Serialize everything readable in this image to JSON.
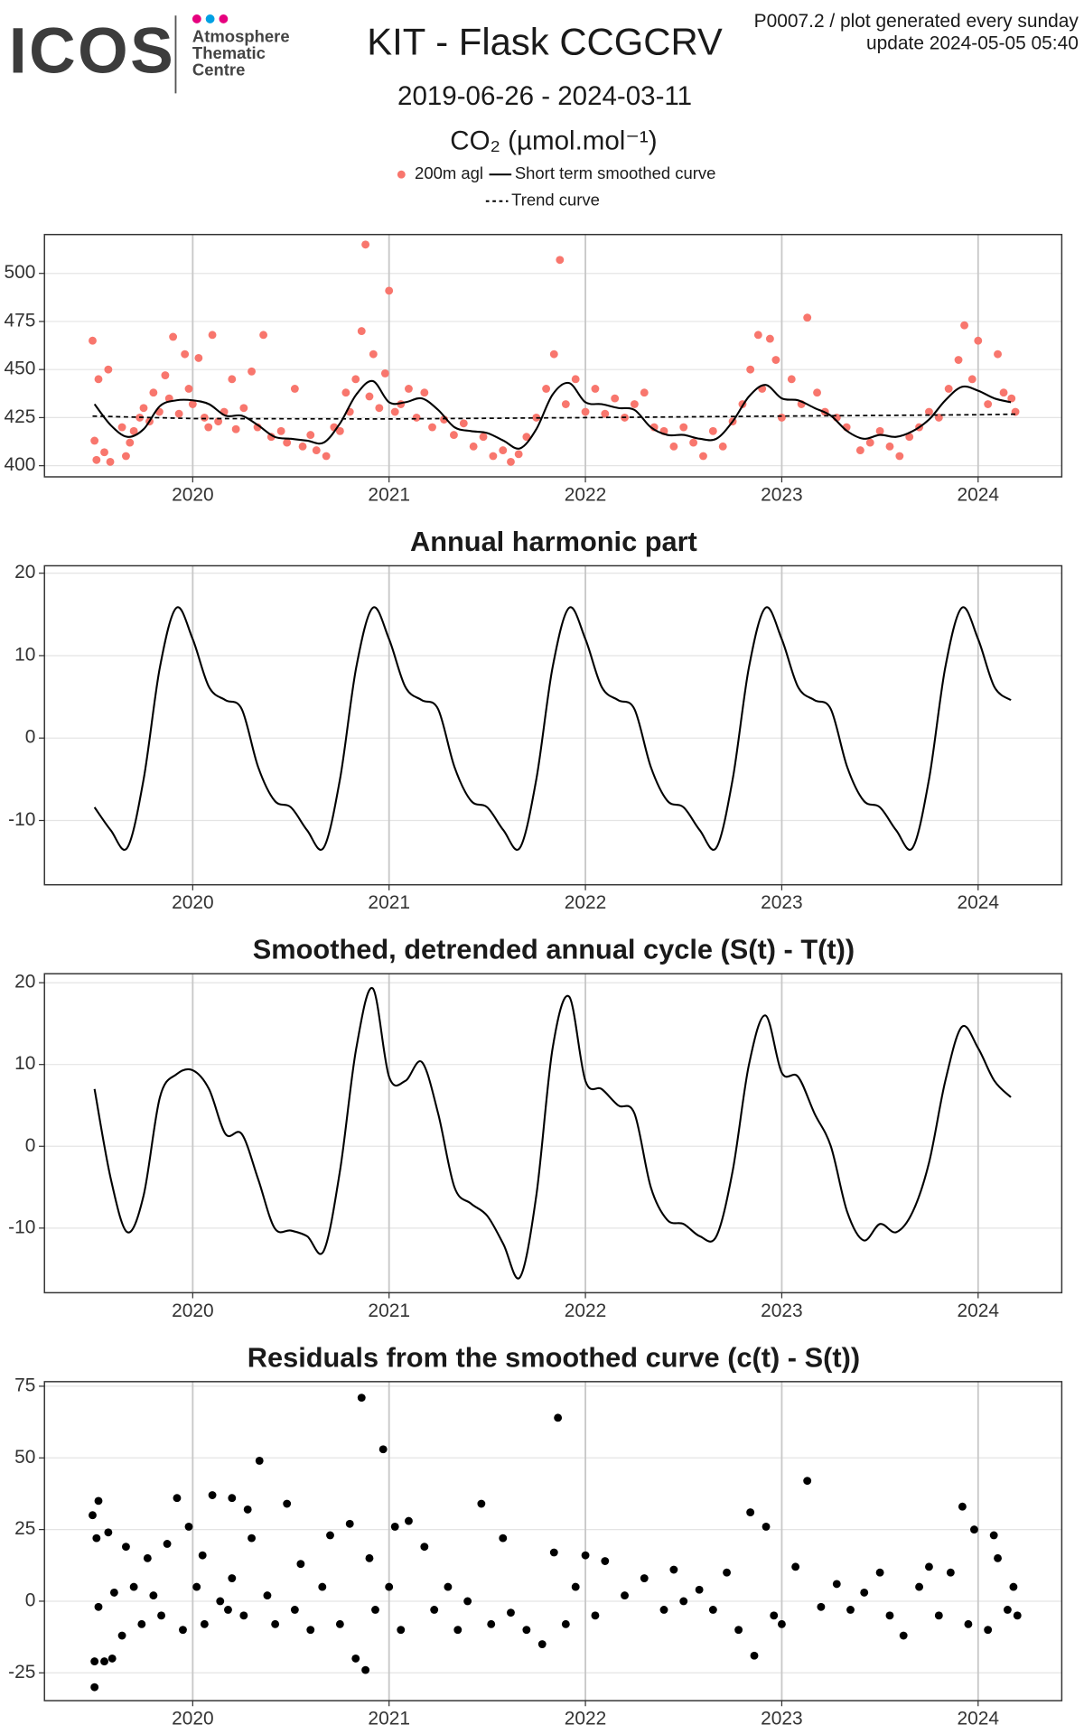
{
  "header": {
    "logo": "ICOS",
    "logo_lines": [
      "Atmosphere",
      "Thematic",
      "Centre"
    ],
    "title": "KIT - Flask CCGCRV",
    "subtitle": "2019-06-26 - 2024-03-11",
    "ylabel": "CO₂ (µmol.mol⁻¹)",
    "note": [
      "P0007.2 / plot generated every sunday",
      "update  2024-05-05 05:40"
    ]
  },
  "chart_data": [
    {
      "type": "scatter",
      "legend": "top",
      "grid": true,
      "xlim": [
        2019.245,
        2024.426
      ],
      "xticks": [
        2020,
        2021,
        2022,
        2023,
        2024
      ],
      "ylim": [
        394.2,
        520.2
      ],
      "yticks": [
        400,
        425,
        450,
        475,
        500
      ],
      "series": [
        {
          "name": "200m agl",
          "color": "#F8766D",
          "style": "points",
          "x": [
            2019.49,
            2019.5,
            2019.51,
            2019.52,
            2019.55,
            2019.57,
            2019.58,
            2019.64,
            2019.66,
            2019.68,
            2019.7,
            2019.73,
            2019.75,
            2019.78,
            2019.8,
            2019.83,
            2019.86,
            2019.88,
            2019.9,
            2019.93,
            2019.96,
            2019.98,
            2020.0,
            2020.03,
            2020.06,
            2020.08,
            2020.1,
            2020.13,
            2020.16,
            2020.2,
            2020.22,
            2020.26,
            2020.3,
            2020.33,
            2020.36,
            2020.4,
            2020.45,
            2020.48,
            2020.52,
            2020.56,
            2020.6,
            2020.63,
            2020.68,
            2020.72,
            2020.75,
            2020.78,
            2020.8,
            2020.83,
            2020.86,
            2020.88,
            2020.9,
            2020.92,
            2020.95,
            2020.98,
            2021.0,
            2021.03,
            2021.06,
            2021.1,
            2021.14,
            2021.18,
            2021.22,
            2021.28,
            2021.33,
            2021.38,
            2021.43,
            2021.48,
            2021.53,
            2021.58,
            2021.62,
            2021.66,
            2021.7,
            2021.75,
            2021.8,
            2021.84,
            2021.87,
            2021.9,
            2021.95,
            2022.0,
            2022.05,
            2022.1,
            2022.15,
            2022.2,
            2022.25,
            2022.3,
            2022.35,
            2022.4,
            2022.45,
            2022.5,
            2022.55,
            2022.6,
            2022.65,
            2022.7,
            2022.75,
            2022.8,
            2022.84,
            2022.88,
            2022.9,
            2022.94,
            2022.97,
            2023.0,
            2023.05,
            2023.1,
            2023.13,
            2023.18,
            2023.22,
            2023.28,
            2023.33,
            2023.4,
            2023.45,
            2023.5,
            2023.55,
            2023.6,
            2023.65,
            2023.7,
            2023.75,
            2023.8,
            2023.85,
            2023.9,
            2023.93,
            2023.97,
            2024.0,
            2024.05,
            2024.1,
            2024.13,
            2024.17,
            2024.19
          ],
          "values": [
            465,
            413,
            403,
            445,
            407,
            450,
            402,
            420,
            405,
            412,
            418,
            425,
            430,
            423,
            438,
            428,
            447,
            435,
            467,
            427,
            458,
            440,
            432,
            456,
            425,
            420,
            468,
            423,
            428,
            445,
            419,
            430,
            449,
            420,
            468,
            415,
            418,
            412,
            440,
            410,
            416,
            408,
            405,
            420,
            418,
            438,
            428,
            445,
            470,
            515,
            436,
            458,
            430,
            448,
            491,
            428,
            432,
            440,
            425,
            438,
            420,
            424,
            416,
            422,
            410,
            415,
            405,
            408,
            402,
            406,
            415,
            425,
            440,
            458,
            507,
            432,
            445,
            428,
            440,
            427,
            435,
            425,
            432,
            438,
            420,
            418,
            410,
            420,
            412,
            405,
            418,
            410,
            423,
            432,
            450,
            468,
            440,
            466,
            455,
            425,
            445,
            432,
            477,
            438,
            428,
            425,
            420,
            408,
            412,
            418,
            410,
            405,
            415,
            420,
            428,
            425,
            440,
            455,
            473,
            445,
            465,
            432,
            458,
            438,
            435,
            428
          ]
        },
        {
          "name": "Short term smoothed curve",
          "color": "#000000",
          "style": "line",
          "x": [
            2019.5,
            2019.583,
            2019.667,
            2019.75,
            2019.833,
            2019.917,
            2020.0,
            2020.083,
            2020.167,
            2020.25,
            2020.333,
            2020.417,
            2020.5,
            2020.583,
            2020.667,
            2020.75,
            2020.833,
            2020.917,
            2021.0,
            2021.083,
            2021.167,
            2021.25,
            2021.333,
            2021.417,
            2021.5,
            2021.583,
            2021.667,
            2021.75,
            2021.833,
            2021.917,
            2022.0,
            2022.083,
            2022.167,
            2022.25,
            2022.333,
            2022.417,
            2022.5,
            2022.583,
            2022.667,
            2022.75,
            2022.833,
            2022.917,
            2023.0,
            2023.083,
            2023.167,
            2023.25,
            2023.333,
            2023.417,
            2023.5,
            2023.583,
            2023.667,
            2023.75,
            2023.833,
            2023.917,
            2024.0,
            2024.083,
            2024.167
          ],
          "values": [
            432,
            421,
            415,
            419,
            431,
            434,
            434,
            432,
            426,
            426,
            421,
            415,
            414,
            413,
            412,
            422,
            437,
            444,
            433,
            433,
            435,
            429,
            420,
            418,
            417,
            413,
            409,
            419,
            437,
            443,
            433,
            432,
            430,
            429,
            420,
            416,
            416,
            414,
            414,
            423,
            436,
            442,
            435,
            434,
            430,
            426,
            418,
            414,
            416,
            415,
            418,
            424,
            434,
            441,
            439,
            435,
            433
          ]
        },
        {
          "name": "Trend curve",
          "color": "#000000",
          "style": "dashed",
          "x": [
            2019.49,
            2020.0,
            2021.0,
            2022.0,
            2023.0,
            2024.0,
            2024.19
          ],
          "values": [
            425.8,
            424.5,
            424.3,
            425,
            425.8,
            426.5,
            426.8
          ]
        }
      ]
    },
    {
      "type": "line",
      "title": "Annual harmonic part",
      "grid": true,
      "xlim": [
        2019.245,
        2024.426
      ],
      "xticks": [
        2020,
        2021,
        2022,
        2023,
        2024
      ],
      "ylim": [
        -17.8,
        20.9
      ],
      "yticks": [
        -10,
        0,
        10,
        20
      ],
      "series": [
        {
          "color": "#000000",
          "style": "line",
          "x": [
            2019.5,
            2019.583,
            2019.667,
            2019.75,
            2019.833,
            2019.917,
            2020.0,
            2020.083,
            2020.167,
            2020.25,
            2020.333,
            2020.417,
            2020.5,
            2020.583,
            2020.667,
            2020.75,
            2020.833,
            2020.917,
            2021.0,
            2021.083,
            2021.167,
            2021.25,
            2021.333,
            2021.417,
            2021.5,
            2021.583,
            2021.667,
            2021.75,
            2021.833,
            2021.917,
            2022.0,
            2022.083,
            2022.167,
            2022.25,
            2022.333,
            2022.417,
            2022.5,
            2022.583,
            2022.667,
            2022.75,
            2022.833,
            2022.917,
            2023.0,
            2023.083,
            2023.167,
            2023.25,
            2023.333,
            2023.417,
            2023.5,
            2023.583,
            2023.667,
            2023.75,
            2023.833,
            2023.917,
            2024.0,
            2024.083,
            2024.167
          ],
          "values": [
            -8.4,
            -11.2,
            -13.3,
            -5,
            8.6,
            15.8,
            12,
            6.2,
            4.6,
            3.5,
            -3.5,
            -7.6,
            -8.4,
            -11.2,
            -13.3,
            -5,
            8.6,
            15.8,
            12,
            6.2,
            4.6,
            3.5,
            -3.5,
            -7.6,
            -8.4,
            -11.2,
            -13.3,
            -5,
            8.6,
            15.8,
            12,
            6.2,
            4.6,
            3.5,
            -3.5,
            -7.6,
            -8.4,
            -11.2,
            -13.3,
            -5,
            8.6,
            15.8,
            12,
            6.2,
            4.6,
            3.5,
            -3.5,
            -7.6,
            -8.4,
            -11.2,
            -13.3,
            -5,
            8.6,
            15.8,
            12,
            6.2,
            4.6
          ]
        }
      ]
    },
    {
      "type": "line",
      "title": "Smoothed, detrended annual cycle (S(t) - T(t))",
      "grid": true,
      "xlim": [
        2019.245,
        2024.426
      ],
      "xticks": [
        2020,
        2021,
        2022,
        2023,
        2024
      ],
      "ylim": [
        -17.9,
        21.1
      ],
      "yticks": [
        -10,
        0,
        10,
        20
      ],
      "series": [
        {
          "color": "#000000",
          "style": "line",
          "x": [
            2019.5,
            2019.583,
            2019.667,
            2019.75,
            2019.833,
            2019.917,
            2020.0,
            2020.083,
            2020.167,
            2020.25,
            2020.333,
            2020.417,
            2020.5,
            2020.583,
            2020.667,
            2020.75,
            2020.833,
            2020.917,
            2021.0,
            2021.083,
            2021.167,
            2021.25,
            2021.333,
            2021.417,
            2021.5,
            2021.583,
            2021.667,
            2021.75,
            2021.833,
            2021.917,
            2022.0,
            2022.083,
            2022.167,
            2022.25,
            2022.333,
            2022.417,
            2022.5,
            2022.583,
            2022.667,
            2022.75,
            2022.833,
            2022.917,
            2023.0,
            2023.083,
            2023.167,
            2023.25,
            2023.333,
            2023.417,
            2023.5,
            2023.583,
            2023.667,
            2023.75,
            2023.833,
            2023.917,
            2024.0,
            2024.083,
            2024.167
          ],
          "values": [
            7,
            -4,
            -10.5,
            -6,
            6,
            8.8,
            9.3,
            7,
            1.5,
            1.5,
            -4,
            -10,
            -10.3,
            -11,
            -12.8,
            -3,
            12,
            19.3,
            8.5,
            8,
            10.3,
            4,
            -5,
            -7,
            -8.5,
            -12,
            -16,
            -6,
            12,
            18.3,
            8,
            7,
            5,
            4,
            -5,
            -9,
            -9.5,
            -11,
            -11,
            -3,
            10,
            16,
            9,
            8.5,
            4,
            0,
            -8,
            -11.5,
            -9.5,
            -10.5,
            -8,
            -2,
            8,
            14.6,
            12,
            8,
            6
          ]
        }
      ]
    },
    {
      "type": "scatter",
      "title": "Residuals from the smoothed curve (c(t) - S(t))",
      "grid": true,
      "xlim": [
        2019.245,
        2024.426
      ],
      "xticks": [
        2020,
        2021,
        2022,
        2023,
        2024
      ],
      "ylim": [
        -34.7,
        76.6
      ],
      "yticks": [
        -25,
        0,
        25,
        50,
        75
      ],
      "series": [
        {
          "color": "#000000",
          "style": "points",
          "x": [
            2019.49,
            2019.5,
            2019.5,
            2019.51,
            2019.52,
            2019.52,
            2019.55,
            2019.57,
            2019.59,
            2019.6,
            2019.64,
            2019.66,
            2019.7,
            2019.74,
            2019.77,
            2019.8,
            2019.84,
            2019.87,
            2019.92,
            2019.95,
            2019.98,
            2020.02,
            2020.05,
            2020.06,
            2020.1,
            2020.14,
            2020.18,
            2020.2,
            2020.2,
            2020.26,
            2020.28,
            2020.3,
            2020.34,
            2020.38,
            2020.42,
            2020.48,
            2020.52,
            2020.55,
            2020.6,
            2020.66,
            2020.7,
            2020.75,
            2020.8,
            2020.83,
            2020.86,
            2020.88,
            2020.9,
            2020.93,
            2020.97,
            2021.0,
            2021.03,
            2021.06,
            2021.1,
            2021.18,
            2021.23,
            2021.3,
            2021.35,
            2021.4,
            2021.47,
            2021.52,
            2021.58,
            2021.62,
            2021.7,
            2021.78,
            2021.84,
            2021.86,
            2021.9,
            2021.95,
            2022.0,
            2022.05,
            2022.1,
            2022.2,
            2022.3,
            2022.4,
            2022.45,
            2022.5,
            2022.58,
            2022.65,
            2022.72,
            2022.78,
            2022.84,
            2022.86,
            2022.92,
            2022.96,
            2023.0,
            2023.07,
            2023.13,
            2023.2,
            2023.28,
            2023.35,
            2023.42,
            2023.5,
            2023.55,
            2023.62,
            2023.7,
            2023.75,
            2023.8,
            2023.86,
            2023.92,
            2023.95,
            2023.98,
            2024.05,
            2024.08,
            2024.1,
            2024.15,
            2024.18,
            2024.2
          ],
          "values": [
            30,
            -30,
            -21,
            22,
            35,
            -2,
            -21,
            24,
            -20,
            3,
            -12,
            19,
            5,
            -8,
            15,
            2,
            -5,
            20,
            36,
            -10,
            26,
            5,
            16,
            -8,
            37,
            0,
            -3,
            8,
            36,
            -5,
            32,
            22,
            49,
            2,
            -8,
            34,
            -3,
            13,
            -10,
            5,
            23,
            -8,
            27,
            -20,
            71,
            -24,
            15,
            -3,
            53,
            5,
            26,
            -10,
            28,
            19,
            -3,
            5,
            -10,
            0,
            34,
            -8,
            22,
            -4,
            -10,
            -15,
            17,
            64,
            -8,
            5,
            16,
            -5,
            14,
            2,
            8,
            -3,
            11,
            0,
            4,
            -3,
            10,
            -10,
            31,
            -19,
            26,
            -5,
            -8,
            12,
            42,
            -2,
            6,
            -3,
            3,
            10,
            -5,
            -12,
            5,
            12,
            -5,
            10,
            33,
            -8,
            25,
            -10,
            23,
            15,
            -3,
            5,
            -5
          ]
        }
      ]
    }
  ]
}
